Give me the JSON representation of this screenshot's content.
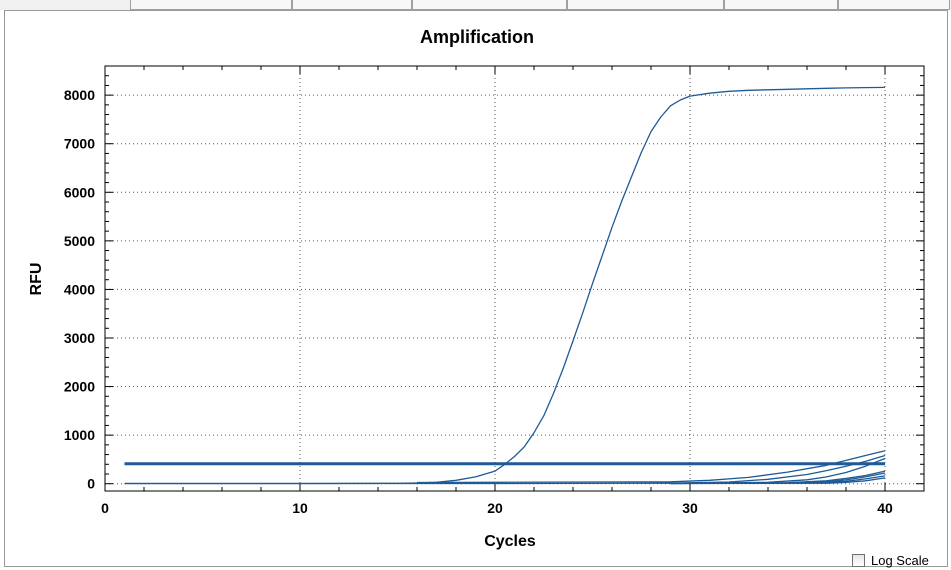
{
  "chart_data": {
    "type": "line",
    "title": "Amplification",
    "xlabel": "Cycles",
    "ylabel": "RFU",
    "xlim": [
      0,
      42
    ],
    "ylim": [
      -150,
      8600
    ],
    "xticks": [
      0,
      10,
      20,
      30,
      40
    ],
    "yticks": [
      0,
      1000,
      2000,
      3000,
      4000,
      5000,
      6000,
      7000,
      8000
    ],
    "grid": true,
    "line_color": "#1f5a96",
    "series": [
      {
        "x": [
          1,
          5,
          10,
          15,
          16,
          17,
          18,
          19,
          20,
          20.5,
          21,
          21.5,
          22,
          22.5,
          23,
          23.5,
          24,
          24.5,
          25,
          25.5,
          26,
          26.5,
          27,
          27.5,
          28,
          28.5,
          29,
          29.5,
          30,
          31,
          32,
          33,
          34,
          35,
          36,
          37,
          38,
          39,
          40
        ],
        "y": [
          5,
          5,
          5,
          8,
          15,
          30,
          70,
          140,
          260,
          400,
          560,
          760,
          1050,
          1400,
          1860,
          2380,
          2940,
          3520,
          4120,
          4700,
          5280,
          5820,
          6320,
          6820,
          7250,
          7550,
          7780,
          7900,
          7980,
          8040,
          8080,
          8100,
          8110,
          8120,
          8130,
          8140,
          8150,
          8155,
          8160
        ]
      },
      {
        "x": [
          1,
          10,
          20,
          30,
          35,
          38,
          40
        ],
        "y": [
          420,
          420,
          420,
          420,
          420,
          420,
          420
        ]
      },
      {
        "x": [
          1,
          10,
          20,
          30,
          35,
          38,
          40
        ],
        "y": [
          415,
          415,
          415,
          415,
          415,
          415,
          415
        ]
      },
      {
        "x": [
          1,
          10,
          20,
          30,
          35,
          38,
          40
        ],
        "y": [
          400,
          400,
          400,
          400,
          400,
          400,
          400
        ]
      },
      {
        "x": [
          16,
          20,
          29,
          31,
          33,
          35,
          37,
          38,
          39,
          40
        ],
        "y": [
          25,
          30,
          40,
          70,
          130,
          240,
          380,
          480,
          580,
          680
        ]
      },
      {
        "x": [
          1,
          20,
          29,
          32,
          34,
          36,
          37,
          38,
          39,
          40
        ],
        "y": [
          5,
          5,
          10,
          35,
          90,
          190,
          270,
          360,
          460,
          580
        ]
      },
      {
        "x": [
          29,
          34,
          36,
          37,
          38,
          39,
          40
        ],
        "y": [
          10,
          30,
          80,
          140,
          230,
          360,
          520
        ]
      },
      {
        "x": [
          29,
          35,
          37,
          38,
          39,
          40
        ],
        "y": [
          5,
          20,
          60,
          110,
          170,
          260
        ]
      },
      {
        "x": [
          29,
          35,
          37,
          38,
          39,
          40
        ],
        "y": [
          5,
          15,
          40,
          80,
          140,
          220
        ]
      },
      {
        "x": [
          29,
          36,
          38,
          39,
          40
        ],
        "y": [
          5,
          15,
          50,
          100,
          160
        ]
      },
      {
        "x": [
          29,
          37,
          38,
          39,
          40
        ],
        "y": [
          5,
          10,
          30,
          60,
          120
        ]
      }
    ]
  },
  "controls": {
    "log_scale_label": "Log Scale",
    "log_scale_checked": false
  }
}
